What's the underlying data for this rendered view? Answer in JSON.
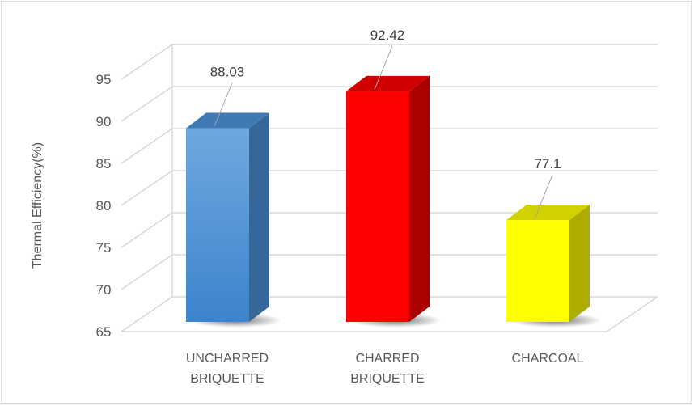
{
  "chart_data": {
    "type": "bar",
    "style": "3d-clustered-column",
    "categories": [
      "UNCHARRED BRIQUETTE",
      "CHARRED BRIQUETTE",
      "CHARCOAL"
    ],
    "category_lines": [
      [
        "UNCHARRED",
        "BRIQUETTE"
      ],
      [
        "CHARRED",
        "BRIQUETTE"
      ],
      [
        "CHARCOAL"
      ]
    ],
    "values": [
      88.03,
      92.42,
      77.1
    ],
    "data_labels": [
      "88.03",
      "92.42",
      "77.1"
    ],
    "bar_colors": [
      "#4a8fd4",
      "#ff0000",
      "#ffff00"
    ],
    "title": "",
    "xlabel": "",
    "ylabel": "Thermal Efficiency(%)",
    "ylim": [
      65,
      95
    ],
    "yticks": [
      65,
      70,
      75,
      80,
      85,
      90,
      95
    ],
    "grid": true,
    "legend": "none"
  }
}
